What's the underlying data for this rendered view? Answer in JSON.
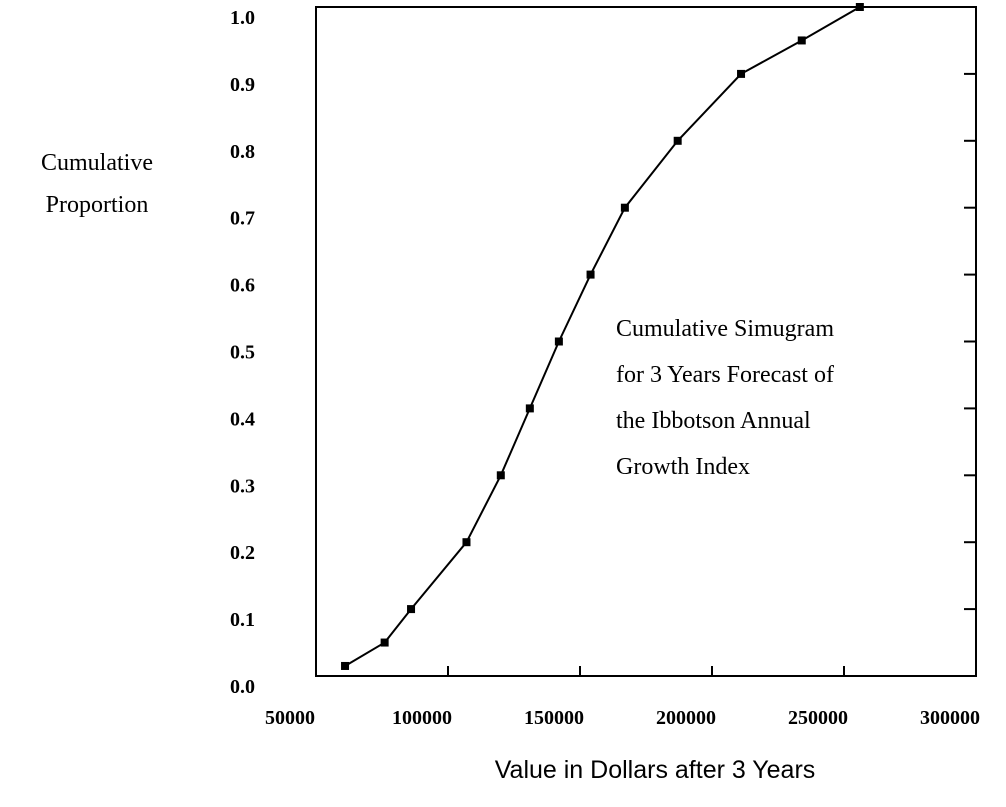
{
  "chart_data": {
    "type": "line",
    "y_label_lines": [
      "Cumulative",
      "Proportion"
    ],
    "xlabel": "Value in Dollars after 3 Years",
    "annotation_lines": [
      "Cumulative Simugram",
      "for 3 Years  Forecast of",
      "the Ibbotson Annual",
      "Growth Index"
    ],
    "x": [
      61000,
      76000,
      86000,
      107000,
      120000,
      131000,
      142000,
      154000,
      167000,
      187000,
      211000,
      234000,
      256000
    ],
    "series": [
      {
        "color": "#000000",
        "values": [
          0.015,
          0.05,
          0.1,
          0.2,
          0.3,
          0.4,
          0.5,
          0.6,
          0.7,
          0.8,
          0.9,
          0.95,
          1.0
        ]
      }
    ],
    "xlim": [
      50000,
      300000
    ],
    "ylim": [
      0,
      1
    ],
    "xticks": [
      50000,
      100000,
      150000,
      200000,
      250000,
      300000
    ],
    "yticks": [
      {
        "value": 0,
        "label": "0.0"
      },
      0.1,
      0.2,
      0.3,
      0.4,
      0.5,
      0.6,
      0.7,
      0.8,
      0.9,
      {
        "value": 1,
        "label": "1.0"
      }
    ]
  }
}
